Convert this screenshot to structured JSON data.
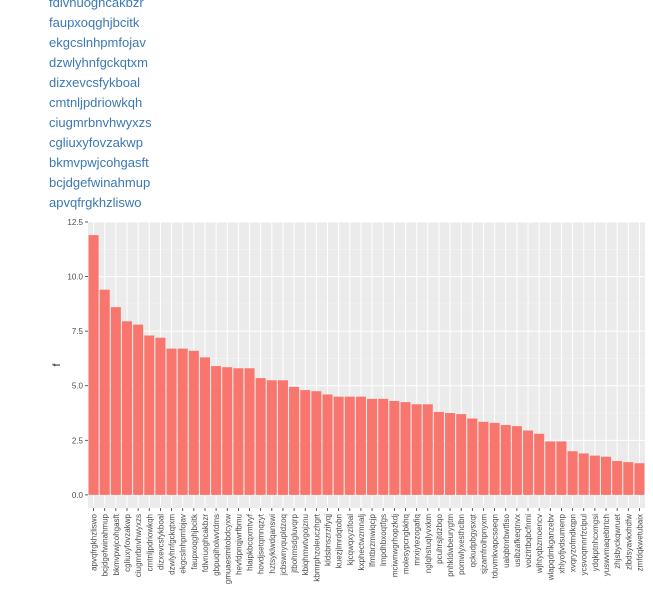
{
  "links": [
    "fdlvnuoghcakbzr",
    "faupxoqghjbcitk",
    "ekgcslnhpmfojav",
    "dzwlyhnfgckqtxm",
    "dizxevcsfykboal",
    "cmtnljpdriowkqh",
    "ciugmrbnvhwyxzs",
    "cgliuxyfovzakwp",
    "bkmvpwjcohgasft",
    "bcjdgefwinahmup",
    "apvqfrgkhzliswo"
  ],
  "colors": {
    "bar": "#f8766d",
    "panel": "#ebebeb",
    "grid": "#ffffff",
    "link": "#3c78b4"
  },
  "chart_data": {
    "type": "bar",
    "title": "",
    "xlabel": "",
    "ylabel": "f",
    "ylim": [
      -0.6,
      12.5
    ],
    "yticks": [
      0.0,
      2.5,
      5.0,
      7.5,
      10.0,
      12.5
    ],
    "ytick_labels": [
      "0.0",
      "2.5",
      "5.0",
      "7.5",
      "10.0",
      "12.5"
    ],
    "grid": true,
    "legend": "none",
    "categories": [
      "apvqfrgkhzliswo",
      "bcjdgefwinahmup",
      "bkmvpwjcohgasft",
      "cgliuxyfovzakwp",
      "ciugmrbnvhwyxzs",
      "cmtnljpdriowkqh",
      "dizxevcsfykboal",
      "dzwlyhnfgckqtxm",
      "ekgcslnhpmfojav",
      "faupxoqghjbcitk",
      "fdlvnuoghcakbzr",
      "gbpuqiholwvtdms",
      "gmuaesmitobdcyxw",
      "hevfdpnqjwrfbmu",
      "hlaipkbcqxmtvyf",
      "hovdjsetqmnqzyt",
      "hztsyklwdqanswi",
      "jcbswnyqupldzoq",
      "jtbohmsdgluvqrp",
      "kbiqhmwtvgojznu",
      "kbmrphzoleuczhgrt",
      "kldsbnszrzifyqj",
      "kuezjlmrdqtobn",
      "kjcqwqxyzifoal",
      "kxphectwzmnalj",
      "lfmtbrzmwiqcjp",
      "lmpdhbxoqtfgs",
      "mciwnwgrhopzkdj",
      "molesypcngbkhq",
      "mrxiytezogafiq",
      "nglqhstuqlyvxkm",
      "pcuhrsjtdzbqo",
      "pnhkldwbeurygtm",
      "pomwlyxesthclbn",
      "qckudpbgysxqt",
      "sjzamfrolhpnyxm",
      "tduvmkvapcsoeqn",
      "ualqbtnrbwtfiso",
      "usibzafkeqtnvx",
      "voiztrtbqbcfnmi",
      "wjhtyqbzmoencv",
      "wlapqdmkganzebv",
      "xhlyofjvdsumenp",
      "xvqryzofmdkqpn",
      "ycsvoqmnrfzclpul",
      "ydqkptnhcxmgsi",
      "yuswvmaqebtrtch",
      "zhjsbyckqwruet",
      "zlbdsyavkxhdfw",
      "zmfdqkwetubaix"
    ],
    "values": [
      11.9,
      9.4,
      8.6,
      7.95,
      7.8,
      7.3,
      7.2,
      6.7,
      6.7,
      6.6,
      6.3,
      5.9,
      5.85,
      5.8,
      5.8,
      5.35,
      5.25,
      5.25,
      4.95,
      4.8,
      4.75,
      4.6,
      4.5,
      4.5,
      4.5,
      4.4,
      4.4,
      4.3,
      4.25,
      4.15,
      4.15,
      3.8,
      3.75,
      3.7,
      3.5,
      3.35,
      3.3,
      3.2,
      3.15,
      2.95,
      2.8,
      2.45,
      2.45,
      2.0,
      1.9,
      1.8,
      1.75,
      1.55,
      1.5,
      1.45
    ]
  }
}
